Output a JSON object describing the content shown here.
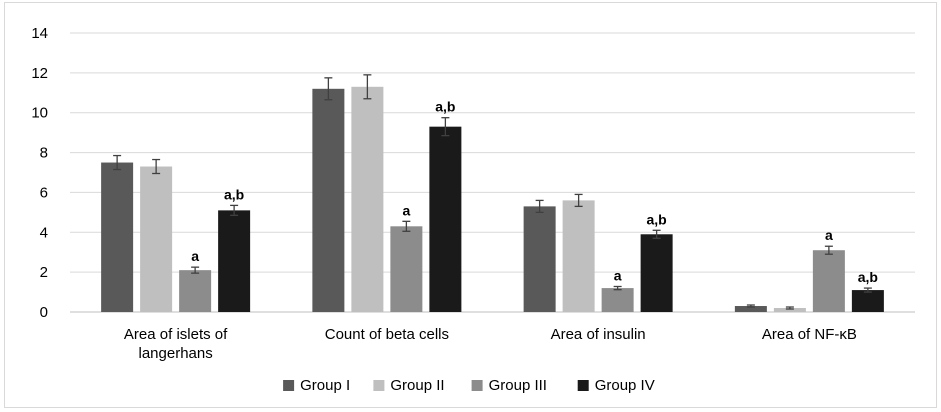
{
  "chart_data": {
    "type": "bar",
    "title": "",
    "xlabel": "",
    "ylabel": "",
    "ylim": [
      0,
      14
    ],
    "yticks": [
      0,
      2,
      4,
      6,
      8,
      10,
      12,
      14
    ],
    "grid": "horizontal",
    "legend_position": "bottom",
    "categories": [
      [
        "Area of islets of",
        "langerhans"
      ],
      [
        "Count of beta cells"
      ],
      [
        "Area of insulin"
      ],
      [
        "Area of NF-κB"
      ]
    ],
    "series": [
      {
        "name": "Group I",
        "color": "#595959",
        "values": [
          7.5,
          11.2,
          5.3,
          0.3
        ],
        "errors": [
          0.35,
          0.55,
          0.3,
          0.05
        ],
        "labels": [
          "",
          "",
          "",
          ""
        ]
      },
      {
        "name": "Group II",
        "color": "#bfbfbf",
        "values": [
          7.3,
          11.3,
          5.6,
          0.2
        ],
        "errors": [
          0.35,
          0.6,
          0.3,
          0.05
        ],
        "labels": [
          "",
          "",
          "",
          ""
        ]
      },
      {
        "name": "Group III",
        "color": "#8c8c8c",
        "values": [
          2.1,
          4.3,
          1.2,
          3.1
        ],
        "errors": [
          0.15,
          0.25,
          0.08,
          0.2
        ],
        "labels": [
          "a",
          "a",
          "a",
          "a"
        ]
      },
      {
        "name": "Group IV",
        "color": "#1a1a1a",
        "values": [
          5.1,
          9.3,
          3.9,
          1.1
        ],
        "errors": [
          0.25,
          0.45,
          0.2,
          0.1
        ],
        "labels": [
          "a,b",
          "a,b",
          "a,b",
          "a,b"
        ]
      }
    ],
    "colors": {
      "grid": "#d9d9d9",
      "axis": "#bfbfbf",
      "errorbar": "#404040"
    }
  }
}
